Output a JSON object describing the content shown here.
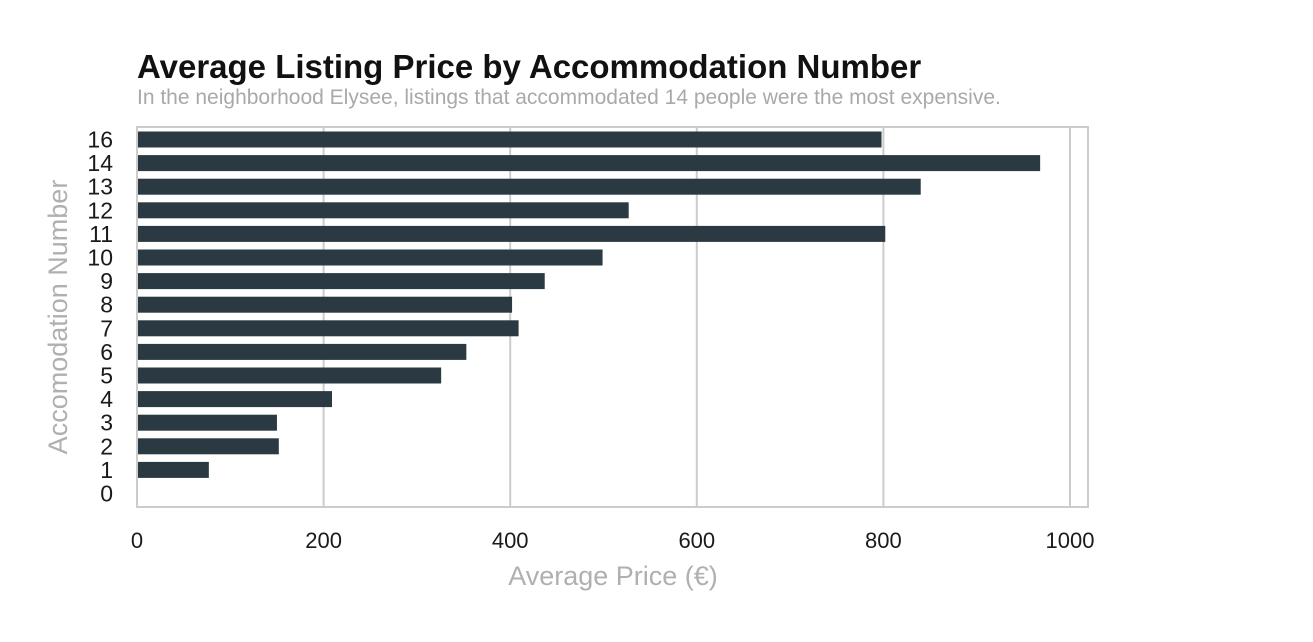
{
  "chart_data": {
    "type": "bar",
    "orientation": "horizontal",
    "title": "Average Listing Price by Accommodation Number",
    "subtitle": "In the neighborhood Elysee, listings that accommodated 14 people were the most expensive.",
    "xlabel": "Average Price (€)",
    "ylabel": "Accomodation Number",
    "categories": [
      "16",
      "14",
      "13",
      "12",
      "11",
      "10",
      "9",
      "8",
      "7",
      "6",
      "5",
      "4",
      "3",
      "2",
      "1",
      "0"
    ],
    "values": [
      798,
      968,
      840,
      527,
      802,
      499,
      437,
      402,
      409,
      353,
      326,
      209,
      150,
      152,
      77,
      0
    ],
    "xlim": [
      0,
      1020
    ],
    "xticks": [
      "0",
      "200",
      "400",
      "600",
      "800",
      "1000"
    ],
    "xtick_values": [
      0,
      200,
      400,
      600,
      800,
      1000
    ],
    "grid": "vertical",
    "bar_color": "#2b3a42",
    "grid_color": "#cccccc",
    "frame_color": "#cccccc"
  }
}
